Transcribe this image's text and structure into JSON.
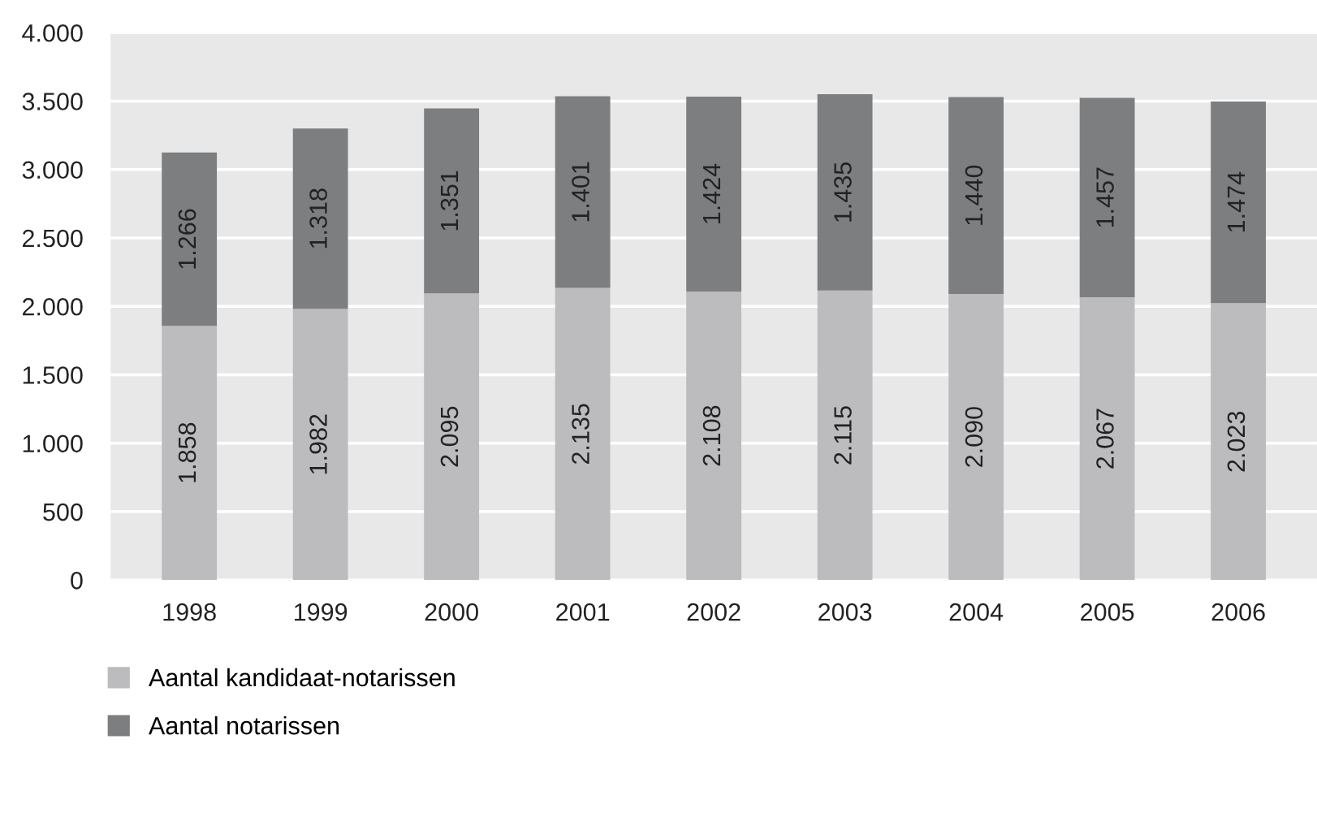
{
  "chart_data": {
    "type": "bar",
    "stacked": true,
    "categories": [
      "1998",
      "1999",
      "2000",
      "2001",
      "2002",
      "2003",
      "2004",
      "2005",
      "2006"
    ],
    "series": [
      {
        "name": "Aantal kandidaat-notarissen",
        "color": "#bcbcbe",
        "values": [
          1858,
          1982,
          2095,
          2135,
          2108,
          2115,
          2090,
          2067,
          2023
        ],
        "value_labels": [
          "1.858",
          "1.982",
          "2.095",
          "2.135",
          "2.108",
          "2.115",
          "2.090",
          "2.067",
          "2.023"
        ]
      },
      {
        "name": "Aantal notarissen",
        "color": "#7d7e80",
        "values": [
          1266,
          1318,
          1351,
          1401,
          1424,
          1435,
          1440,
          1457,
          1474
        ],
        "value_labels": [
          "1.266",
          "1.318",
          "1.351",
          "1.401",
          "1.424",
          "1.435",
          "1.440",
          "1.457",
          "1.474"
        ]
      }
    ],
    "ylim": [
      0,
      4000
    ],
    "yticks": [
      0,
      500,
      {
        "value": 1000,
        "label": "1.000"
      },
      {
        "value": 1500,
        "label": "1.500"
      },
      {
        "value": 2000,
        "label": "2.000"
      },
      {
        "value": 2500,
        "label": "2.500"
      },
      {
        "value": 3000,
        "label": "3.000"
      },
      {
        "value": 3500,
        "label": "3.500"
      },
      {
        "value": 4000,
        "label": "4.000"
      }
    ],
    "grid": "y",
    "legend": "bottom left"
  }
}
